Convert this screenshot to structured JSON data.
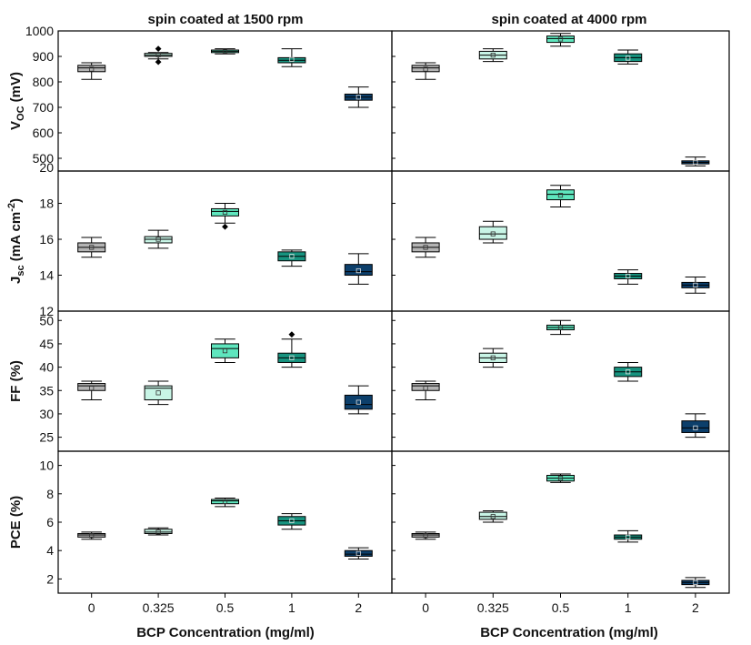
{
  "chart_data": {
    "type": "box",
    "column_titles": [
      "spin coated at 1500 rpm",
      "spin coated at 4000 rpm"
    ],
    "xlabel": "BCP Concentration (mg/ml)",
    "categories": [
      "0",
      "0.325",
      "0.5",
      "1",
      "2"
    ],
    "colors": [
      "#b4b4b4",
      "#c8f5e6",
      "#5fe6be",
      "#17937f",
      "#0c3f6b"
    ],
    "rows": [
      {
        "ylabel_main": "V",
        "ylabel_sub": "OC",
        "ylabel_unit": " (mV)",
        "ylim": [
          450,
          1000
        ],
        "yticks": [
          500,
          600,
          700,
          800,
          900,
          1000
        ],
        "ytick_labels": [
          "500",
          "600",
          "700",
          "800",
          "900",
          "1000"
        ],
        "bottom_label": "20",
        "series": [
          {
            "name": "spin coated at 1500 rpm",
            "boxes": [
              {
                "min": 810,
                "q1": 840,
                "median": 855,
                "q3": 865,
                "max": 875,
                "mean": 850,
                "outliers": []
              },
              {
                "min": 890,
                "q1": 900,
                "median": 905,
                "q3": 912,
                "max": 915,
                "mean": 906,
                "outliers": [
                  878,
                  930
                ]
              },
              {
                "min": 910,
                "q1": 915,
                "median": 920,
                "q3": 925,
                "max": 930,
                "mean": 920,
                "outliers": []
              },
              {
                "min": 860,
                "q1": 875,
                "median": 885,
                "q3": 895,
                "max": 930,
                "mean": 888,
                "outliers": []
              },
              {
                "min": 700,
                "q1": 728,
                "median": 740,
                "q3": 752,
                "max": 780,
                "mean": 740,
                "outliers": []
              }
            ]
          },
          {
            "name": "spin coated at 4000 rpm",
            "boxes": [
              {
                "min": 810,
                "q1": 840,
                "median": 855,
                "q3": 865,
                "max": 875,
                "mean": 850,
                "outliers": []
              },
              {
                "min": 880,
                "q1": 890,
                "median": 905,
                "q3": 920,
                "max": 930,
                "mean": 905,
                "outliers": []
              },
              {
                "min": 940,
                "q1": 955,
                "median": 970,
                "q3": 980,
                "max": 990,
                "mean": 968,
                "outliers": []
              },
              {
                "min": 870,
                "q1": 880,
                "median": 895,
                "q3": 910,
                "max": 925,
                "mean": 893,
                "outliers": []
              },
              {
                "min": 470,
                "q1": 478,
                "median": 484,
                "q3": 490,
                "max": 505,
                "mean": 484,
                "outliers": []
              }
            ]
          }
        ]
      },
      {
        "ylabel_main": "J",
        "ylabel_sub": "sc",
        "ylabel_unit": " (mA cm",
        "ylabel_sup": "-2",
        "ylabel_close": ")",
        "ylim": [
          12,
          19.8
        ],
        "yticks": [
          12,
          14,
          16,
          18
        ],
        "ytick_labels": [
          "12",
          "14",
          "16",
          "18"
        ],
        "series": [
          {
            "name": "spin coated at 1500 rpm",
            "boxes": [
              {
                "min": 15.0,
                "q1": 15.3,
                "median": 15.55,
                "q3": 15.8,
                "max": 16.1,
                "mean": 15.55,
                "outliers": []
              },
              {
                "min": 15.5,
                "q1": 15.8,
                "median": 16.0,
                "q3": 16.15,
                "max": 16.5,
                "mean": 16.0,
                "outliers": []
              },
              {
                "min": 16.9,
                "q1": 17.3,
                "median": 17.55,
                "q3": 17.7,
                "max": 18.0,
                "mean": 17.5,
                "outliers": [
                  16.7
                ]
              },
              {
                "min": 14.5,
                "q1": 14.8,
                "median": 15.05,
                "q3": 15.3,
                "max": 15.4,
                "mean": 15.05,
                "outliers": []
              },
              {
                "min": 13.5,
                "q1": 14.0,
                "median": 14.2,
                "q3": 14.6,
                "max": 15.2,
                "mean": 14.25,
                "outliers": []
              }
            ]
          },
          {
            "name": "spin coated at 4000 rpm",
            "boxes": [
              {
                "min": 15.0,
                "q1": 15.3,
                "median": 15.55,
                "q3": 15.8,
                "max": 16.1,
                "mean": 15.55,
                "outliers": []
              },
              {
                "min": 15.8,
                "q1": 16.0,
                "median": 16.3,
                "q3": 16.7,
                "max": 17.0,
                "mean": 16.3,
                "outliers": []
              },
              {
                "min": 17.8,
                "q1": 18.2,
                "median": 18.5,
                "q3": 18.75,
                "max": 19.0,
                "mean": 18.45,
                "outliers": []
              },
              {
                "min": 13.5,
                "q1": 13.8,
                "median": 13.95,
                "q3": 14.1,
                "max": 14.3,
                "mean": 13.95,
                "outliers": []
              },
              {
                "min": 13.0,
                "q1": 13.3,
                "median": 13.45,
                "q3": 13.6,
                "max": 13.9,
                "mean": 13.45,
                "outliers": []
              }
            ]
          }
        ]
      },
      {
        "ylabel_main": "FF (%)",
        "ylim": [
          22,
          52
        ],
        "yticks": [
          25,
          30,
          35,
          40,
          45,
          50
        ],
        "ytick_labels": [
          "25",
          "30",
          "35",
          "40",
          "45",
          "50"
        ],
        "series": [
          {
            "name": "spin coated at 1500 rpm",
            "boxes": [
              {
                "min": 33.0,
                "q1": 35.0,
                "median": 36.0,
                "q3": 36.5,
                "max": 37.0,
                "mean": 35.5,
                "outliers": []
              },
              {
                "min": 32.0,
                "q1": 33.0,
                "median": 35.5,
                "q3": 36.0,
                "max": 37.0,
                "mean": 34.5,
                "outliers": []
              },
              {
                "min": 41.0,
                "q1": 42.0,
                "median": 44.0,
                "q3": 45.0,
                "max": 46.0,
                "mean": 43.5,
                "outliers": []
              },
              {
                "min": 40.0,
                "q1": 41.0,
                "median": 42.0,
                "q3": 43.0,
                "max": 46.0,
                "mean": 42.0,
                "outliers": [
                  47.0
                ]
              },
              {
                "min": 30.0,
                "q1": 31.0,
                "median": 32.0,
                "q3": 34.0,
                "max": 36.0,
                "mean": 32.5,
                "outliers": []
              }
            ]
          },
          {
            "name": "spin coated at 4000 rpm",
            "boxes": [
              {
                "min": 33.0,
                "q1": 35.0,
                "median": 36.0,
                "q3": 36.5,
                "max": 37.0,
                "mean": 35.5,
                "outliers": []
              },
              {
                "min": 40.0,
                "q1": 41.0,
                "median": 42.0,
                "q3": 43.0,
                "max": 44.0,
                "mean": 42.0,
                "outliers": []
              },
              {
                "min": 47.0,
                "q1": 48.0,
                "median": 48.5,
                "q3": 49.0,
                "max": 50.0,
                "mean": 48.5,
                "outliers": []
              },
              {
                "min": 37.0,
                "q1": 38.0,
                "median": 39.0,
                "q3": 40.0,
                "max": 41.0,
                "mean": 39.0,
                "outliers": []
              },
              {
                "min": 25.0,
                "q1": 26.0,
                "median": 27.0,
                "q3": 28.5,
                "max": 30.0,
                "mean": 27.0,
                "outliers": []
              }
            ]
          }
        ]
      },
      {
        "ylabel_main": "PCE (%)",
        "ylim": [
          1,
          11
        ],
        "yticks": [
          2,
          4,
          6,
          8,
          10
        ],
        "ytick_labels": [
          "2",
          "4",
          "6",
          "8",
          "10"
        ],
        "series": [
          {
            "name": "spin coated at 1500 rpm",
            "boxes": [
              {
                "min": 4.8,
                "q1": 4.95,
                "median": 5.1,
                "q3": 5.2,
                "max": 5.3,
                "mean": 5.05,
                "outliers": []
              },
              {
                "min": 5.1,
                "q1": 5.2,
                "median": 5.3,
                "q3": 5.5,
                "max": 5.6,
                "mean": 5.3,
                "outliers": []
              },
              {
                "min": 7.1,
                "q1": 7.3,
                "median": 7.5,
                "q3": 7.6,
                "max": 7.7,
                "mean": 7.45,
                "outliers": []
              },
              {
                "min": 5.5,
                "q1": 5.8,
                "median": 6.1,
                "q3": 6.4,
                "max": 6.6,
                "mean": 6.1,
                "outliers": []
              },
              {
                "min": 3.4,
                "q1": 3.6,
                "median": 3.75,
                "q3": 4.0,
                "max": 4.2,
                "mean": 3.8,
                "outliers": []
              }
            ]
          },
          {
            "name": "spin coated at 4000 rpm",
            "boxes": [
              {
                "min": 4.8,
                "q1": 4.95,
                "median": 5.1,
                "q3": 5.2,
                "max": 5.3,
                "mean": 5.05,
                "outliers": []
              },
              {
                "min": 6.0,
                "q1": 6.2,
                "median": 6.4,
                "q3": 6.7,
                "max": 6.8,
                "mean": 6.4,
                "outliers": []
              },
              {
                "min": 8.8,
                "q1": 8.9,
                "median": 9.1,
                "q3": 9.3,
                "max": 9.4,
                "mean": 9.1,
                "outliers": []
              },
              {
                "min": 4.6,
                "q1": 4.8,
                "median": 4.95,
                "q3": 5.1,
                "max": 5.4,
                "mean": 4.95,
                "outliers": []
              },
              {
                "min": 1.4,
                "q1": 1.6,
                "median": 1.75,
                "q3": 1.9,
                "max": 2.1,
                "mean": 1.75,
                "outliers": []
              }
            ]
          }
        ]
      }
    ]
  }
}
